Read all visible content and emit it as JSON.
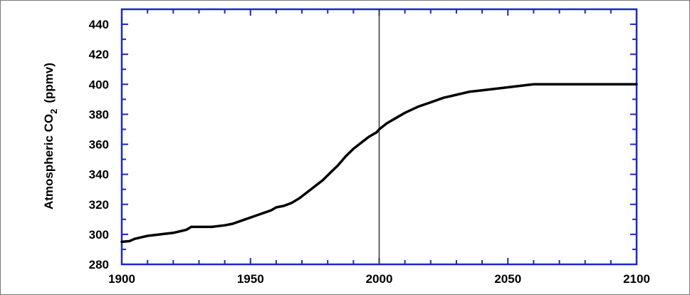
{
  "chart_data": {
    "type": "line",
    "ylabel_prefix": "Atmospheric CO",
    "ylabel_subscript": "2",
    "ylabel_suffix": "(ppmv)",
    "xlabel": "",
    "xlim": [
      1900,
      2100
    ],
    "ylim": [
      280,
      450
    ],
    "x_ticks": [
      1900,
      1950,
      2000,
      2050,
      2100
    ],
    "y_ticks": [
      280,
      300,
      320,
      340,
      360,
      380,
      400,
      420,
      440
    ],
    "reference_line_x": 2000,
    "grid": false,
    "series": [
      {
        "x": [
          1900,
          1903,
          1905,
          1910,
          1915,
          1920,
          1925,
          1927,
          1930,
          1935,
          1940,
          1943,
          1948,
          1953,
          1958,
          1960,
          1963,
          1966,
          1969,
          1972,
          1975,
          1978,
          1981,
          1984,
          1987,
          1990,
          1993,
          1996,
          1999,
          2000,
          2003,
          2006,
          2010,
          2015,
          2020,
          2025,
          2030,
          2035,
          2040,
          2045,
          2050,
          2055,
          2060,
          2070,
          2080,
          2090,
          2100
        ],
        "y": [
          295,
          295.5,
          297,
          299,
          300,
          301,
          303,
          305,
          305,
          305,
          306,
          307,
          310,
          313,
          316,
          318,
          319,
          321,
          324,
          328,
          332,
          336,
          341,
          346,
          352,
          357,
          361,
          365,
          368,
          370,
          374,
          377,
          381,
          385,
          388,
          391,
          393,
          395,
          396,
          397,
          398,
          399,
          400,
          400,
          400,
          400,
          400
        ]
      }
    ],
    "colors": {
      "axis": "#1c28c8",
      "line": "#000000",
      "reference_line": "#333333"
    }
  }
}
